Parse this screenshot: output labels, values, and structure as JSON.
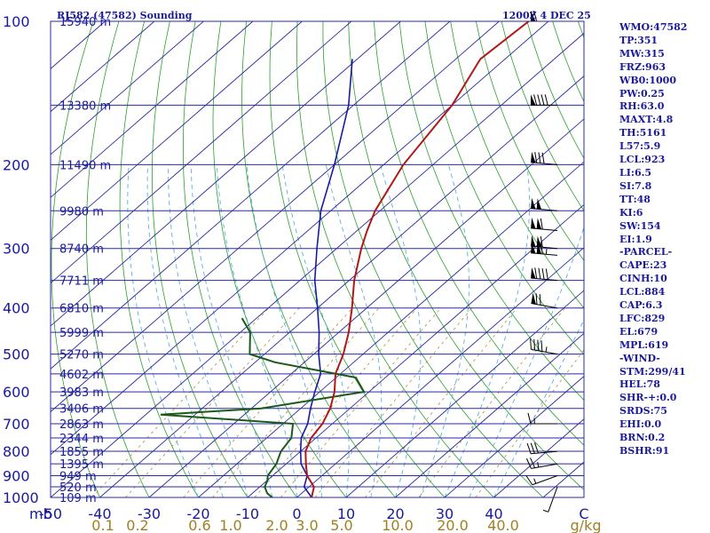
{
  "header": {
    "title": "RJ582 (47582) Sounding",
    "time": "1200Z  4 DEC 25"
  },
  "pressure_axis_unit": "mb",
  "mixing_ratio_unit": "g/kg",
  "indices": [
    "WMO:47582",
    "TP:351",
    "MW:315",
    "FRZ:963",
    "WB0:1000",
    "PW:0.25",
    "RH:63.0",
    "MAXT:4.8",
    "TH:5161",
    "L57:5.9",
    "LCL:923",
    "LI:6.5",
    "SI:7.8",
    "TT:48",
    "KI:6",
    "SW:154",
    "EI:1.9",
    "-PARCEL-",
    "CAPE:23",
    "CINH:10",
    "LCL:884",
    "CAP:6.3",
    "LFC:829",
    "EL:679",
    "MPL:619",
    "-WIND-",
    "STM:299/41",
    "HEL:78",
    "SHR-+:0.0",
    "SRDS:75",
    "EHI:0.0",
    "BRN:0.2",
    "BSHR:91"
  ],
  "colors": {
    "isobar": "#2a2aa0",
    "isotherm": "#2a2aa0",
    "dry_adiabat": "#2aa02a",
    "moist_adiabat": "#5ab0e0",
    "mixing_ratio": "#b09040",
    "temperature": "#b01818",
    "dewpoint": "#1a5a1a",
    "parcel": "#1a1aa0"
  },
  "chart_data": {
    "type": "skew-t",
    "pressure_ticks": [
      100,
      200,
      300,
      400,
      500,
      600,
      700,
      800,
      900,
      1000
    ],
    "temperature_ticks": [
      -50,
      -40,
      -30,
      -20,
      -10,
      0,
      10,
      20,
      30,
      40
    ],
    "temperature_tick_labels": [
      "-50",
      "-40",
      "-30",
      "-20",
      "-10",
      "0",
      "10",
      "20",
      "30",
      "40"
    ],
    "xlim": [
      -50,
      50
    ],
    "ylim": [
      1000,
      100
    ],
    "mixing_ratio_labels": [
      "0.1",
      "0.2",
      "0.6",
      "1.0",
      "2.0",
      "3.0",
      "5.0",
      "10.0",
      "20.0",
      "40.0"
    ],
    "mixing_ratio_values": [
      0.1,
      0.2,
      0.6,
      1.0,
      2.0,
      3.0,
      5.0,
      10.0,
      20.0,
      40.0
    ],
    "height_levels": [
      {
        "p": 100,
        "label": "15940 m"
      },
      {
        "p": 150,
        "label": "13380 m"
      },
      {
        "p": 200,
        "label": "11490 m"
      },
      {
        "p": 250,
        "label": "9980 m"
      },
      {
        "p": 300,
        "label": "8740 m"
      },
      {
        "p": 350,
        "label": "7711 m"
      },
      {
        "p": 400,
        "label": "6810 m"
      },
      {
        "p": 450,
        "label": "5999 m"
      },
      {
        "p": 500,
        "label": "5270 m"
      },
      {
        "p": 550,
        "label": "4602 m"
      },
      {
        "p": 600,
        "label": "3983 m"
      },
      {
        "p": 650,
        "label": "3406 m"
      },
      {
        "p": 700,
        "label": "2863 m"
      },
      {
        "p": 750,
        "label": "2344 m"
      },
      {
        "p": 800,
        "label": "1855 m"
      },
      {
        "p": 850,
        "label": "1395 m"
      },
      {
        "p": 900,
        "label": "949 m"
      },
      {
        "p": 950,
        "label": "520 m"
      },
      {
        "p": 1000,
        "label": "109 m"
      }
    ],
    "temperature_profile": [
      [
        1000,
        3
      ],
      [
        950,
        1
      ],
      [
        900,
        -3
      ],
      [
        850,
        -6
      ],
      [
        800,
        -9
      ],
      [
        750,
        -11
      ],
      [
        700,
        -12
      ],
      [
        650,
        -14
      ],
      [
        600,
        -17
      ],
      [
        550,
        -21
      ],
      [
        500,
        -24
      ],
      [
        450,
        -28
      ],
      [
        400,
        -33
      ],
      [
        350,
        -39
      ],
      [
        300,
        -45
      ],
      [
        275,
        -48
      ],
      [
        250,
        -51
      ],
      [
        200,
        -56
      ],
      [
        150,
        -60
      ],
      [
        120,
        -65
      ],
      [
        100,
        -64
      ]
    ],
    "dewpoint_profile": [
      [
        1000,
        -5
      ],
      [
        980,
        -7
      ],
      [
        950,
        -9
      ],
      [
        920,
        -10
      ],
      [
        900,
        -11
      ],
      [
        850,
        -12
      ],
      [
        800,
        -14
      ],
      [
        750,
        -15
      ],
      [
        700,
        -18
      ],
      [
        670,
        -47
      ],
      [
        650,
        -28
      ],
      [
        600,
        -11
      ],
      [
        560,
        -16
      ],
      [
        520,
        -36
      ],
      [
        500,
        -43
      ],
      [
        450,
        -48
      ],
      [
        420,
        -53
      ]
    ],
    "parcel_profile": [
      [
        1000,
        3
      ],
      [
        950,
        -1
      ],
      [
        900,
        -3
      ],
      [
        850,
        -7
      ],
      [
        800,
        -10
      ],
      [
        750,
        -13
      ],
      [
        700,
        -15
      ],
      [
        650,
        -18
      ],
      [
        600,
        -21
      ],
      [
        550,
        -24
      ],
      [
        500,
        -29
      ],
      [
        450,
        -34
      ],
      [
        400,
        -40
      ],
      [
        350,
        -47
      ],
      [
        300,
        -54
      ],
      [
        250,
        -62
      ],
      [
        200,
        -70
      ],
      [
        150,
        -81
      ],
      [
        120,
        -91
      ]
    ],
    "wind_barbs": [
      {
        "p": 100,
        "dir": 270,
        "spd": 60
      },
      {
        "p": 150,
        "dir": 270,
        "spd": 90
      },
      {
        "p": 200,
        "dir": 275,
        "spd": 80
      },
      {
        "p": 250,
        "dir": 275,
        "spd": 100
      },
      {
        "p": 275,
        "dir": 275,
        "spd": 110
      },
      {
        "p": 300,
        "dir": 275,
        "spd": 110
      },
      {
        "p": 310,
        "dir": 275,
        "spd": 115
      },
      {
        "p": 350,
        "dir": 275,
        "spd": 90
      },
      {
        "p": 400,
        "dir": 280,
        "spd": 70
      },
      {
        "p": 500,
        "dir": 280,
        "spd": 45
      },
      {
        "p": 700,
        "dir": 270,
        "spd": 15
      },
      {
        "p": 800,
        "dir": 265,
        "spd": 30
      },
      {
        "p": 850,
        "dir": 260,
        "spd": 25
      },
      {
        "p": 900,
        "dir": 250,
        "spd": 15
      },
      {
        "p": 950,
        "dir": 200,
        "spd": 5
      }
    ]
  }
}
